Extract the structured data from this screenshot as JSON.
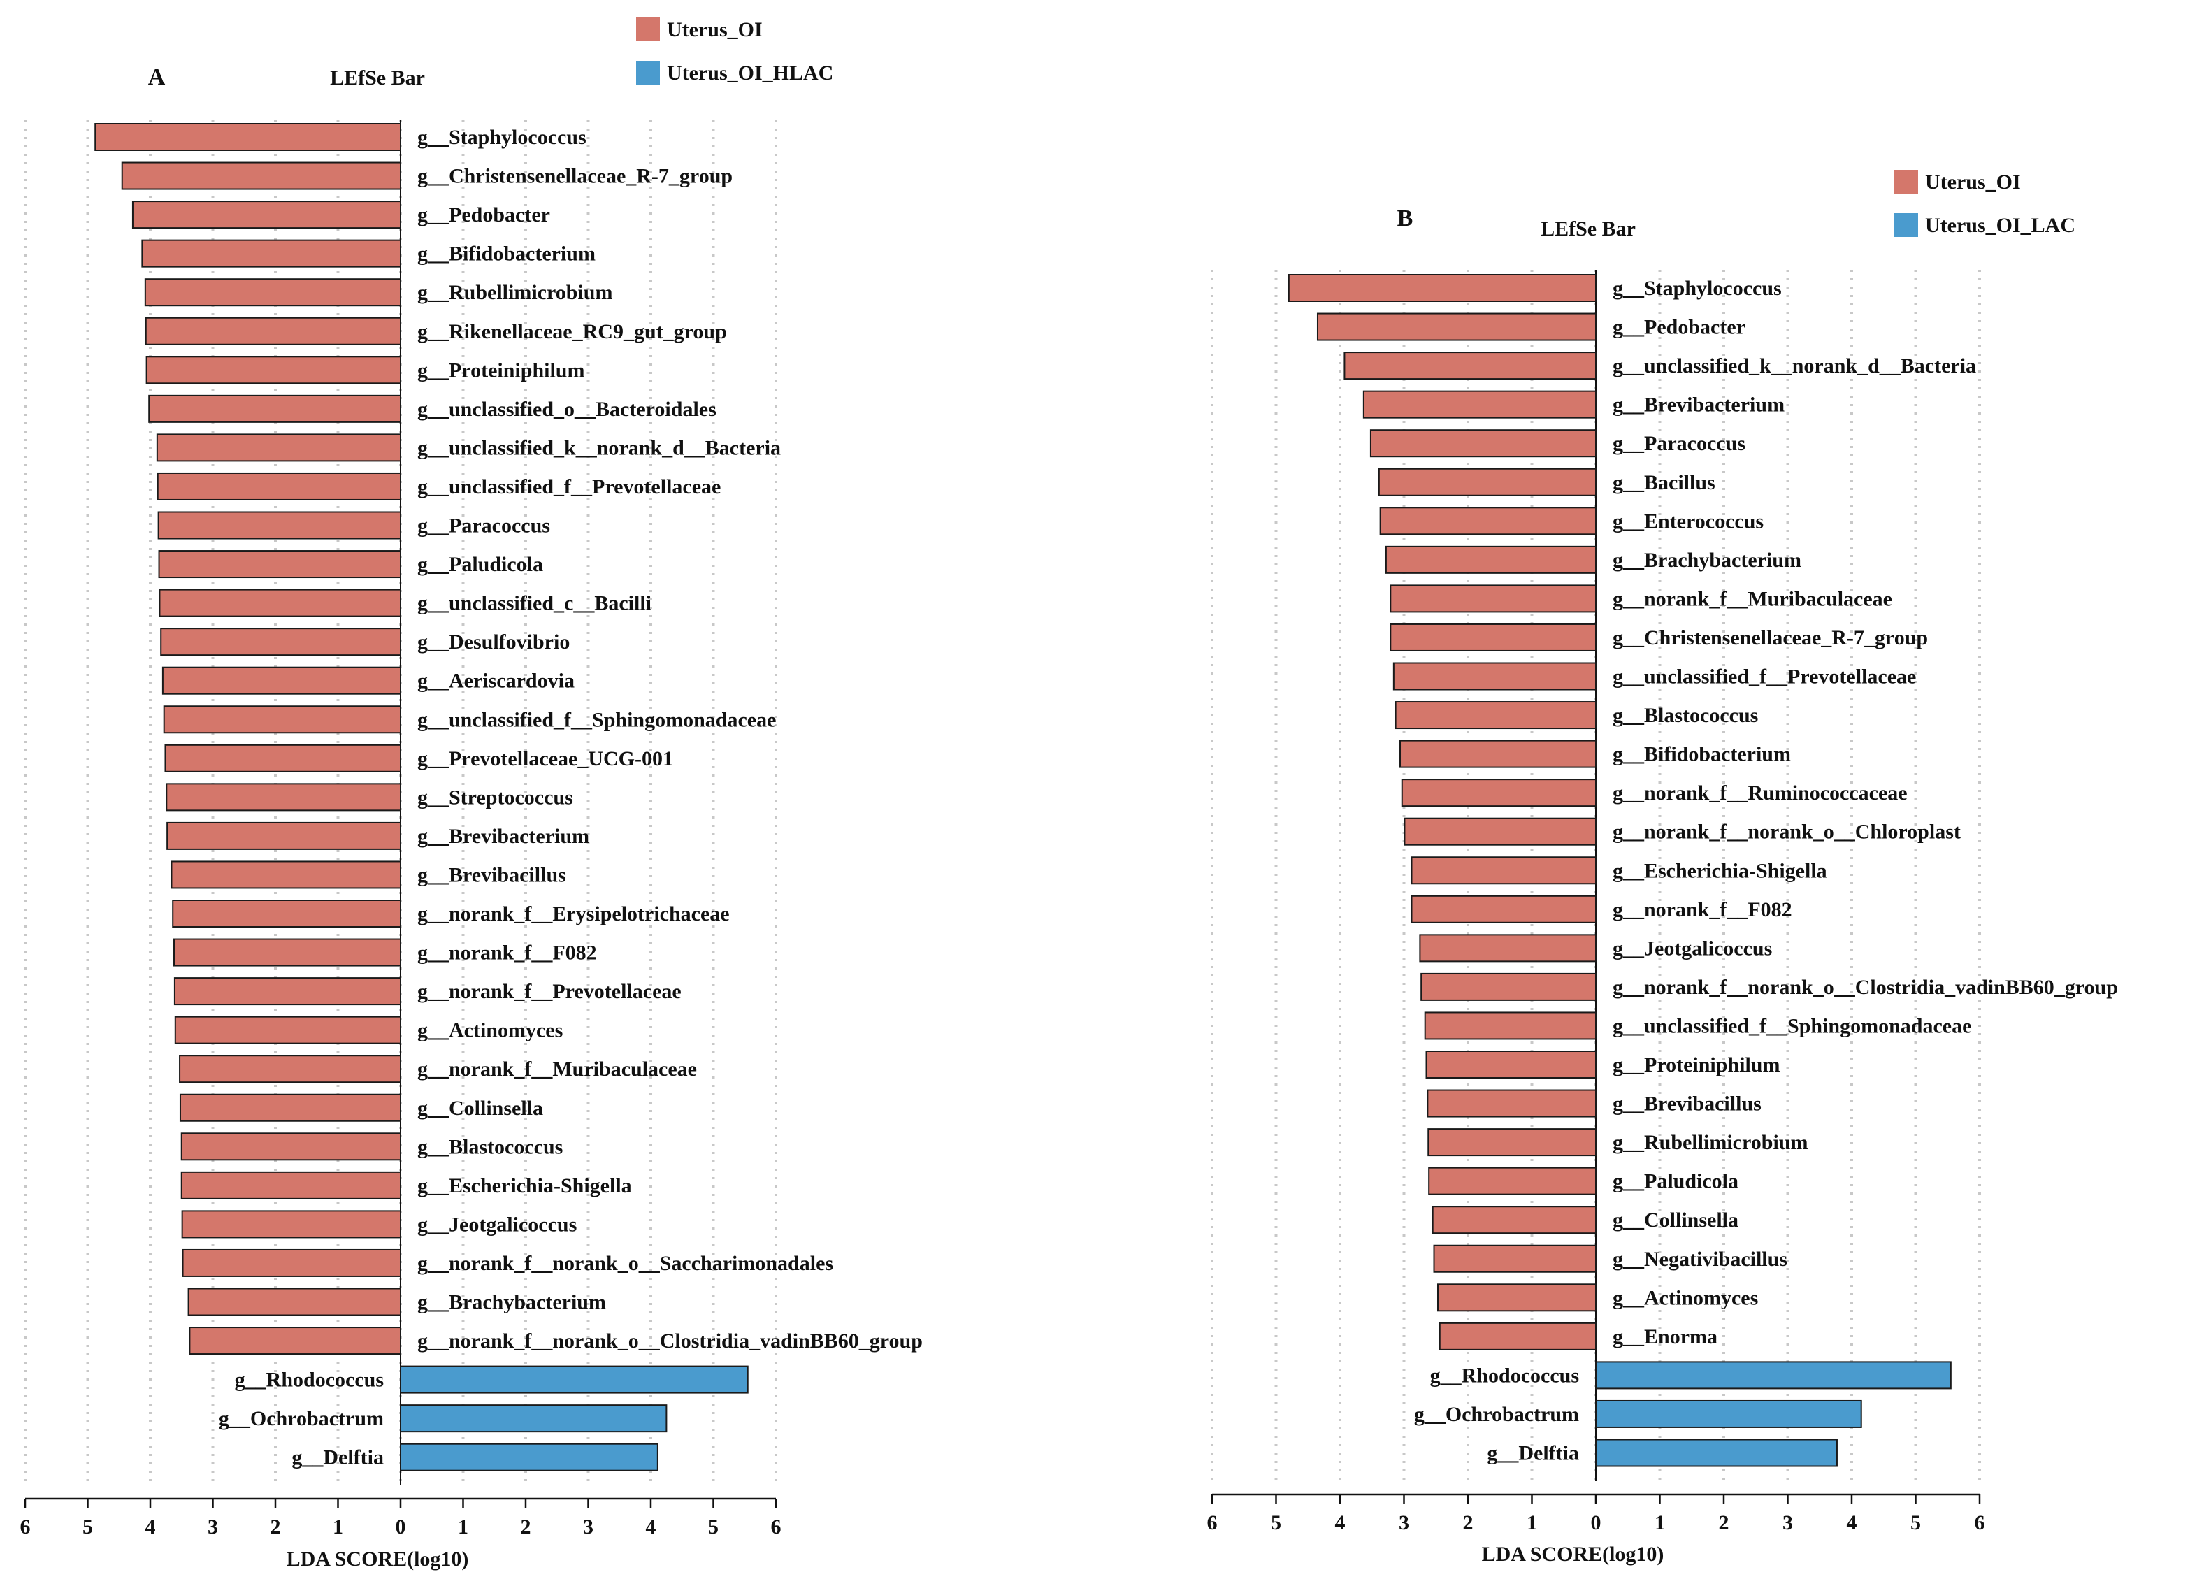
{
  "chart_data": [
    {
      "panel": "A",
      "type": "bar",
      "orientation": "horizontal",
      "title": "LEfSe Bar",
      "xlabel": "LDA SCORE(log10)",
      "xlim": [
        -6,
        6
      ],
      "xtick_labels": [
        "6",
        "5",
        "4",
        "3",
        "2",
        "1",
        "0",
        "1",
        "2",
        "3",
        "4",
        "5",
        "6"
      ],
      "legend": [
        {
          "name": "Uterus_OI",
          "color": "#d4776b"
        },
        {
          "name": "Uterus_OI_HLAC",
          "color": "#4a9bce"
        }
      ],
      "series": [
        {
          "name": "Uterus_OI",
          "color": "#d4776b",
          "direction": "left",
          "categories": [
            "g__Staphylococcus",
            "g__Christensenellaceae_R-7_group",
            "g__Pedobacter",
            "g__Bifidobacterium",
            "g__Rubellimicrobium",
            "g__Rikenellaceae_RC9_gut_group",
            "g__Proteiniphilum",
            "g__unclassified_o__Bacteroidales",
            "g__unclassified_k__norank_d__Bacteria",
            "g__unclassified_f__Prevotellaceae",
            "g__Paracoccus",
            "g__Paludicola",
            "g__unclassified_c__Bacilli",
            "g__Desulfovibrio",
            "g__Aeriscardovia",
            "g__unclassified_f__Sphingomonadaceae",
            "g__Prevotellaceae_UCG-001",
            "g__Streptococcus",
            "g__Brevibacterium",
            "g__Brevibacillus",
            "g__norank_f__Erysipelotrichaceae",
            "g__norank_f__F082",
            "g__norank_f__Prevotellaceae",
            "g__Actinomyces",
            "g__norank_f__Muribaculaceae",
            "g__Collinsella",
            "g__Blastococcus",
            "g__Escherichia-Shigella",
            "g__Jeotgalicoccus",
            "g__norank_f__norank_o__Saccharimonadales",
            "g__Brachybacterium",
            "g__norank_f__norank_o__Clostridia_vadinBB60_group"
          ],
          "values": [
            4.88,
            4.45,
            4.28,
            4.13,
            4.08,
            4.07,
            4.06,
            4.02,
            3.89,
            3.88,
            3.87,
            3.86,
            3.85,
            3.83,
            3.8,
            3.78,
            3.76,
            3.74,
            3.73,
            3.66,
            3.64,
            3.62,
            3.61,
            3.6,
            3.53,
            3.52,
            3.5,
            3.5,
            3.49,
            3.48,
            3.39,
            3.37
          ]
        },
        {
          "name": "Uterus_OI_HLAC",
          "color": "#4a9bce",
          "direction": "right",
          "categories": [
            "g__Rhodococcus",
            "g__Ochrobactrum",
            "g__Delftia"
          ],
          "values": [
            5.55,
            4.25,
            4.11
          ]
        }
      ]
    },
    {
      "panel": "B",
      "type": "bar",
      "orientation": "horizontal",
      "title": "LEfSe Bar",
      "xlabel": "LDA SCORE(log10)",
      "xlim": [
        -6,
        6
      ],
      "xtick_labels": [
        "6",
        "5",
        "4",
        "3",
        "2",
        "1",
        "0",
        "1",
        "2",
        "3",
        "4",
        "5",
        "6"
      ],
      "legend": [
        {
          "name": "Uterus_OI",
          "color": "#d4776b"
        },
        {
          "name": "Uterus_OI_LAC",
          "color": "#4a9bce"
        }
      ],
      "series": [
        {
          "name": "Uterus_OI",
          "color": "#d4776b",
          "direction": "left",
          "categories": [
            "g__Staphylococcus",
            "g__Pedobacter",
            "g__unclassified_k__norank_d__Bacteria",
            "g__Brevibacterium",
            "g__Paracoccus",
            "g__Bacillus",
            "g__Enterococcus",
            "g__Brachybacterium",
            "g__norank_f__Muribaculaceae",
            "g__Christensenellaceae_R-7_group",
            "g__unclassified_f__Prevotellaceae",
            "g__Blastococcus",
            "g__Bifidobacterium",
            "g__norank_f__Ruminococcaceae",
            "g__norank_f__norank_o__Chloroplast",
            "g__Escherichia-Shigella",
            "g__norank_f__F082",
            "g__Jeotgalicoccus",
            "g__norank_f__norank_o__Clostridia_vadinBB60_group",
            "g__unclassified_f__Sphingomonadaceae",
            "g__Proteiniphilum",
            "g__Brevibacillus",
            "g__Rubellimicrobium",
            "g__Paludicola",
            "g__Collinsella",
            "g__Negativibacillus",
            "g__Actinomyces",
            "g__Enorma"
          ],
          "values": [
            4.8,
            4.35,
            3.93,
            3.63,
            3.52,
            3.39,
            3.37,
            3.28,
            3.21,
            3.21,
            3.16,
            3.13,
            3.06,
            3.03,
            2.99,
            2.88,
            2.88,
            2.75,
            2.73,
            2.67,
            2.65,
            2.63,
            2.62,
            2.61,
            2.55,
            2.53,
            2.47,
            2.44
          ]
        },
        {
          "name": "Uterus_OI_LAC",
          "color": "#4a9bce",
          "direction": "right",
          "categories": [
            "g__Rhodococcus",
            "g__Ochrobactrum",
            "g__Delftia"
          ],
          "values": [
            5.55,
            4.15,
            3.77
          ]
        }
      ]
    }
  ]
}
